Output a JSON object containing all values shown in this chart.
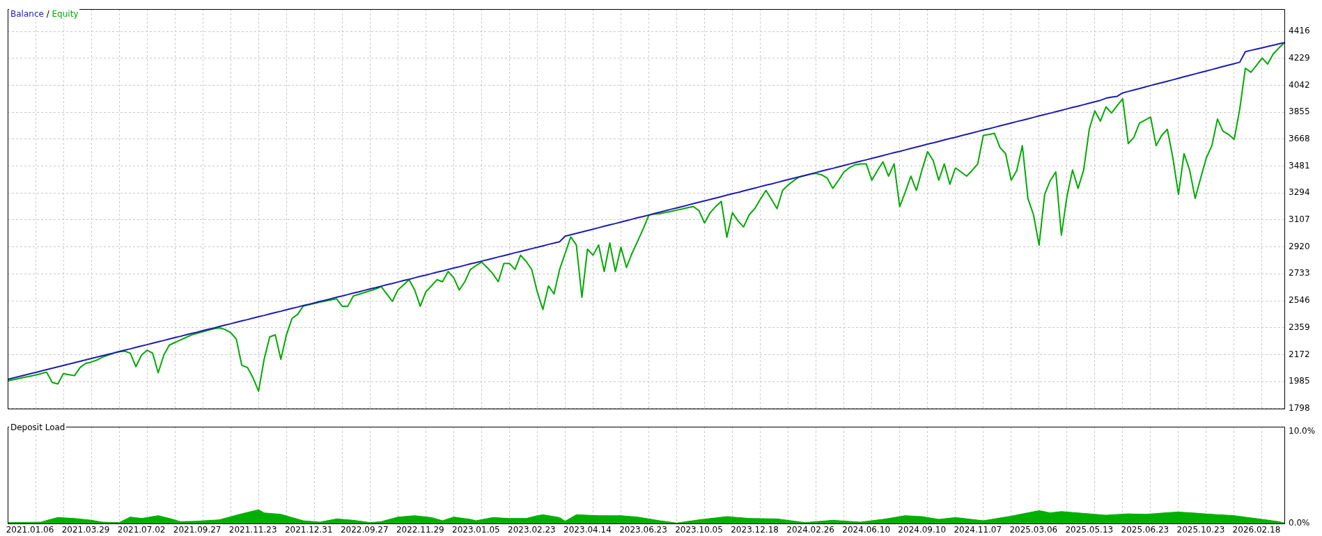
{
  "chart_data": [
    {
      "type": "line",
      "ylim": [
        1798,
        4570
      ],
      "categories": [
        null,
        null,
        null,
        null,
        "2021.01.06",
        null,
        null,
        null,
        null,
        null,
        null,
        null,
        null,
        null,
        "2021.03.29",
        null,
        null,
        null,
        null,
        null,
        null,
        null,
        null,
        null,
        "2021.07.02",
        null,
        null,
        null,
        null,
        null,
        null,
        null,
        null,
        null,
        "2021.09.27",
        null,
        null,
        null,
        null,
        null,
        null,
        null,
        null,
        null,
        "2021.11.23",
        null,
        null,
        null,
        null,
        null,
        null,
        null,
        null,
        null,
        "2021.12.31",
        null,
        null,
        null,
        null,
        null,
        null,
        null,
        null,
        null,
        "2022.09.27",
        null,
        null,
        null,
        null,
        null,
        null,
        null,
        null,
        null,
        "2022.11.29",
        null,
        null,
        null,
        null,
        null,
        null,
        null,
        null,
        null,
        "2023.01.05",
        null,
        null,
        null,
        null,
        null,
        null,
        null,
        null,
        null,
        "2023.02.23",
        null,
        null,
        null,
        null,
        null,
        null,
        null,
        null,
        null,
        "2023.04.14",
        null,
        null,
        null,
        null,
        null,
        null,
        null,
        null,
        null,
        "2023.06.23",
        null,
        null,
        null,
        null,
        null,
        null,
        null,
        null,
        null,
        "2023.10.05",
        null,
        null,
        null,
        null,
        null,
        null,
        null,
        null,
        null,
        "2023.12.18",
        null,
        null,
        null,
        null,
        null,
        null,
        null,
        null,
        null,
        "2024.02.26",
        null,
        null,
        null,
        null,
        null,
        null,
        null,
        null,
        null,
        "2024.06.10",
        null,
        null,
        null,
        null,
        null,
        null,
        null,
        null,
        null,
        "2024.09.10",
        null,
        null,
        null,
        null,
        null,
        null,
        null,
        null,
        null,
        "2024.11.07",
        null,
        null,
        null,
        null,
        null,
        null,
        null,
        null,
        null,
        "2025.03.06",
        null,
        null,
        null,
        null,
        null,
        null,
        null,
        null,
        null,
        "2025.05.13",
        null,
        null,
        null,
        null,
        null,
        null,
        null,
        null,
        null,
        "2025.06.23",
        null,
        null,
        null,
        null,
        null,
        null,
        null,
        null,
        null,
        "2025.10.23",
        null,
        null,
        null,
        null,
        null,
        null,
        null,
        null,
        null,
        "2026.02.18",
        null,
        null,
        null,
        null,
        null
      ],
      "yticks": [
        1798,
        1985,
        2172,
        2359,
        2546,
        2733,
        2920,
        3107,
        3294,
        3481,
        3668,
        3855,
        4042,
        4229,
        4416
      ],
      "grid": true,
      "legend": "top left",
      "tick_labels": "y",
      "marker": "none",
      "line_style": "solid",
      "annotations": [
        "/"
      ],
      "series": [
        {
          "name": "Balance",
          "color": "#1c1cae",
          "values": [
            2000,
            2010,
            2019,
            2029,
            2039,
            2048,
            2058,
            2068,
            2077,
            2087,
            2097,
            2106,
            2116,
            2126,
            2135,
            2145,
            2155,
            2164,
            2174,
            2183,
            2193,
            2203,
            2212,
            2222,
            2232,
            2241,
            2251,
            2261,
            2270,
            2280,
            2290,
            2299,
            2309,
            2319,
            2328,
            2338,
            2348,
            2357,
            2367,
            2377,
            2386,
            2396,
            2406,
            2415,
            2425,
            2435,
            2444,
            2454,
            2464,
            2473,
            2483,
            2493,
            2502,
            2512,
            2521,
            2531,
            2541,
            2550,
            2560,
            2570,
            2579,
            2589,
            2599,
            2608,
            2618,
            2628,
            2637,
            2647,
            2657,
            2666,
            2676,
            2686,
            2695,
            2705,
            2715,
            2724,
            2734,
            2744,
            2753,
            2763,
            2773,
            2782,
            2792,
            2802,
            2811,
            2821,
            2830,
            2840,
            2850,
            2859,
            2869,
            2879,
            2888,
            2898,
            2908,
            2917,
            2927,
            2937,
            2946,
            2956,
            2994,
            3004,
            3014,
            3023,
            3033,
            3043,
            3053,
            3063,
            3073,
            3082,
            3092,
            3102,
            3112,
            3122,
            3131,
            3141,
            3151,
            3161,
            3171,
            3181,
            3190,
            3200,
            3210,
            3220,
            3230,
            3240,
            3249,
            3259,
            3269,
            3279,
            3289,
            3298,
            3308,
            3318,
            3328,
            3338,
            3348,
            3357,
            3367,
            3377,
            3387,
            3397,
            3406,
            3416,
            3426,
            3436,
            3446,
            3456,
            3465,
            3475,
            3485,
            3495,
            3505,
            3515,
            3524,
            3534,
            3544,
            3554,
            3564,
            3574,
            3583,
            3593,
            3603,
            3613,
            3623,
            3633,
            3642,
            3652,
            3662,
            3672,
            3681,
            3691,
            3701,
            3711,
            3721,
            3731,
            3740,
            3750,
            3760,
            3770,
            3780,
            3790,
            3799,
            3809,
            3819,
            3829,
            3839,
            3848,
            3858,
            3868,
            3878,
            3888,
            3897,
            3907,
            3917,
            3927,
            3937,
            3952,
            3960,
            3965,
            3989,
            3999,
            4009,
            4019,
            4030,
            4040,
            4050,
            4060,
            4070,
            4080,
            4090,
            4101,
            4111,
            4121,
            4131,
            4141,
            4151,
            4161,
            4172,
            4182,
            4192,
            4202,
            4275,
            4284,
            4293,
            4302,
            4311,
            4320,
            4329,
            4338
          ]
        },
        {
          "name": "Equity",
          "color": "#00aa00",
          "values": [
            1990,
            1998,
            2006,
            2014,
            2022,
            2030,
            2040,
            2050,
            1978,
            1969,
            2040,
            2033,
            2026,
            2083,
            2111,
            2120,
            2134,
            2154,
            2168,
            2182,
            2192,
            2196,
            2182,
            2088,
            2168,
            2202,
            2182,
            2046,
            2168,
            2238,
            2256,
            2274,
            2291,
            2309,
            2320,
            2331,
            2342,
            2352,
            2358,
            2346,
            2324,
            2281,
            2097,
            2083,
            2012,
            1918,
            2139,
            2295,
            2309,
            2139,
            2309,
            2423,
            2451,
            2508,
            2518,
            2527,
            2536,
            2544,
            2552,
            2559,
            2508,
            2508,
            2579,
            2591,
            2603,
            2615,
            2627,
            2645,
            2593,
            2542,
            2621,
            2656,
            2692,
            2621,
            2508,
            2607,
            2649,
            2692,
            2678,
            2749,
            2706,
            2621,
            2678,
            2763,
            2790,
            2814,
            2777,
            2734,
            2678,
            2805,
            2805,
            2763,
            2862,
            2819,
            2763,
            2607,
            2485,
            2649,
            2593,
            2763,
            2876,
            2989,
            2933,
            2570,
            2904,
            2862,
            2933,
            2749,
            2947,
            2749,
            2918,
            2777,
            2876,
            2960,
            3046,
            3140,
            3148,
            3150,
            3158,
            3166,
            3175,
            3183,
            3192,
            3200,
            3171,
            3086,
            3157,
            3200,
            3236,
            2987,
            3157,
            3100,
            3058,
            3143,
            3185,
            3250,
            3312,
            3250,
            3185,
            3312,
            3350,
            3380,
            3405,
            3415,
            3425,
            3430,
            3420,
            3397,
            3326,
            3380,
            3440,
            3470,
            3490,
            3496,
            3496,
            3383,
            3450,
            3510,
            3411,
            3496,
            3199,
            3300,
            3411,
            3312,
            3454,
            3581,
            3520,
            3383,
            3496,
            3355,
            3468,
            3440,
            3411,
            3450,
            3496,
            3694,
            3700,
            3708,
            3609,
            3567,
            3383,
            3450,
            3623,
            3256,
            3143,
            2931,
            3284,
            3380,
            3440,
            3001,
            3270,
            3454,
            3326,
            3454,
            3736,
            3864,
            3793,
            3892,
            3849,
            3900,
            3948,
            3637,
            3680,
            3779,
            3800,
            3821,
            3623,
            3694,
            3736,
            3538,
            3284,
            3567,
            3454,
            3256,
            3400,
            3538,
            3623,
            3807,
            3722,
            3700,
            3666,
            3878,
            4160,
            4132,
            4180,
            4231,
            4189,
            4259,
            4300,
            4338
          ]
        }
      ]
    },
    {
      "type": "area",
      "title": "Deposit Load",
      "ylim": [
        0,
        10.5
      ],
      "categories": [
        null,
        null,
        null,
        null,
        "2021.01.06",
        null,
        null,
        null,
        null,
        null,
        null,
        null,
        null,
        null,
        "2021.03.29",
        null,
        null,
        null,
        null,
        null,
        null,
        null,
        null,
        null,
        "2021.07.02",
        null,
        null,
        null,
        null,
        null,
        null,
        null,
        null,
        null,
        "2021.09.27",
        null,
        null,
        null,
        null,
        null,
        null,
        null,
        null,
        null,
        "2021.11.23",
        null,
        null,
        null,
        null,
        null,
        null,
        null,
        null,
        null,
        "2021.12.31",
        null,
        null,
        null,
        null,
        null,
        null,
        null,
        null,
        null,
        "2022.09.27",
        null,
        null,
        null,
        null,
        null,
        null,
        null,
        null,
        null,
        "2022.11.29",
        null,
        null,
        null,
        null,
        null,
        null,
        null,
        null,
        null,
        "2023.01.05",
        null,
        null,
        null,
        null,
        null,
        null,
        null,
        null,
        null,
        "2023.02.23",
        null,
        null,
        null,
        null,
        null,
        null,
        null,
        null,
        null,
        "2023.04.14",
        null,
        null,
        null,
        null,
        null,
        null,
        null,
        null,
        null,
        "2023.06.23",
        null,
        null,
        null,
        null,
        null,
        null,
        null,
        null,
        null,
        "2023.10.05",
        null,
        null,
        null,
        null,
        null,
        null,
        null,
        null,
        null,
        "2023.12.18",
        null,
        null,
        null,
        null,
        null,
        null,
        null,
        null,
        null,
        "2024.02.26",
        null,
        null,
        null,
        null,
        null,
        null,
        null,
        null,
        null,
        "2024.06.10",
        null,
        null,
        null,
        null,
        null,
        null,
        null,
        null,
        null,
        "2024.09.10",
        null,
        null,
        null,
        null,
        null,
        null,
        null,
        null,
        null,
        "2024.11.07",
        null,
        null,
        null,
        null,
        null,
        null,
        null,
        null,
        null,
        "2025.03.06",
        null,
        null,
        null,
        null,
        null,
        null,
        null,
        null,
        null,
        "2025.05.13",
        null,
        null,
        null,
        null,
        null,
        null,
        null,
        null,
        null,
        "2025.06.23",
        null,
        null,
        null,
        null,
        null,
        null,
        null,
        null,
        null,
        "2025.10.23",
        null,
        null,
        null,
        null,
        null,
        null,
        null,
        null,
        null,
        "2026.02.18",
        null,
        null,
        null,
        null,
        null
      ],
      "yticks": [
        {
          "value": 0,
          "label": "0.0%"
        },
        {
          "value": 10,
          "label": "10.0%"
        }
      ],
      "grid": "x",
      "color": "#00b000",
      "values": [
        0.1,
        0.11,
        0.12,
        0.12,
        0.13,
        0.14,
        0.15,
        0.33,
        0.5,
        0.65,
        0.62,
        0.58,
        0.55,
        0.48,
        0.42,
        0.35,
        0.25,
        0.15,
        0.13,
        0.12,
        0.1,
        0.4,
        0.7,
        0.63,
        0.55,
        0.65,
        0.75,
        0.85,
        0.7,
        0.55,
        0.38,
        0.2,
        0.22,
        0.23,
        0.25,
        0.29,
        0.33,
        0.36,
        0.4,
        0.57,
        0.73,
        0.9,
        1.05,
        1.2,
        1.35,
        1.5,
        1.15,
        1.1,
        1.05,
        1.0,
        0.83,
        0.65,
        0.48,
        0.3,
        0.25,
        0.2,
        0.15,
        0.27,
        0.38,
        0.5,
        0.45,
        0.4,
        0.35,
        0.27,
        0.18,
        0.1,
        0.15,
        0.2,
        0.37,
        0.53,
        0.7,
        0.75,
        0.8,
        0.85,
        0.78,
        0.72,
        0.65,
        0.48,
        0.3,
        0.5,
        0.7,
        0.62,
        0.53,
        0.45,
        0.3,
        0.42,
        0.53,
        0.65,
        0.62,
        0.58,
        0.55,
        0.55,
        0.55,
        0.55,
        0.7,
        0.85,
        0.95,
        0.85,
        0.75,
        0.65,
        0.25,
        0.6,
        0.95,
        0.93,
        0.9,
        0.88,
        0.85,
        0.85,
        0.85,
        0.85,
        0.85,
        0.8,
        0.75,
        0.7,
        0.6,
        0.5,
        0.4,
        0.3,
        0.22,
        0.13,
        0.05,
        0.14,
        0.23,
        0.31,
        0.4,
        0.47,
        0.54,
        0.61,
        0.68,
        0.75,
        0.7,
        0.65,
        0.6,
        0.55,
        0.54,
        0.53,
        0.52,
        0.51,
        0.5,
        0.42,
        0.34,
        0.26,
        0.18,
        0.1,
        0.15,
        0.2,
        0.25,
        0.3,
        0.35,
        0.31,
        0.27,
        0.23,
        0.19,
        0.15,
        0.23,
        0.3,
        0.38,
        0.45,
        0.55,
        0.65,
        0.75,
        0.85,
        0.82,
        0.78,
        0.75,
        0.65,
        0.55,
        0.45,
        0.52,
        0.58,
        0.65,
        0.58,
        0.51,
        0.44,
        0.37,
        0.3,
        0.4,
        0.5,
        0.6,
        0.7,
        0.8,
        0.92,
        1.04,
        1.16,
        1.28,
        1.4,
        1.28,
        1.15,
        1.23,
        1.3,
        1.25,
        1.2,
        1.15,
        1.1,
        1.05,
        1.0,
        0.95,
        0.9,
        0.94,
        0.98,
        1.01,
        1.05,
        1.03,
        1.02,
        1.0,
        1.04,
        1.08,
        1.13,
        1.17,
        1.21,
        1.25,
        1.21,
        1.17,
        1.13,
        1.08,
        1.04,
        1.0,
        0.96,
        0.93,
        0.89,
        0.85,
        0.77,
        0.69,
        0.61,
        0.53,
        0.45,
        0.37,
        0.28,
        0.2,
        0.05
      ]
    }
  ]
}
